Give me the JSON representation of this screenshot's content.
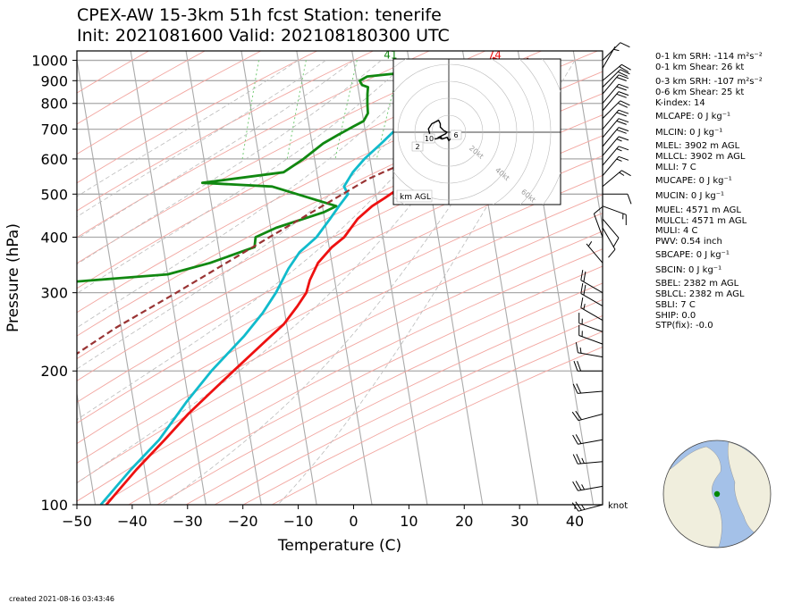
{
  "title": {
    "line1": "CPEX-AW 15-3km  51h fcst  Station: tenerife",
    "line2": "Init: 2021081600  Valid: 202108180300 UTC"
  },
  "created": "created 2021-08-16 03:43:46",
  "colors": {
    "temperature": "#ee1111",
    "dewpoint": "#118811",
    "wetbulb": "#11bbcc",
    "parcel": "#993333",
    "isotherm": "#aaaaaa",
    "dry_adiabat": "#f2a6a0",
    "moist_adiabat": "#bbbbbb",
    "mixing_ratio": "#77cc77"
  },
  "chart_data": {
    "type": "line",
    "subtype": "skew-T log-p",
    "xlabel": "Temperature (C)",
    "ylabel": "Pressure (hPa)",
    "xlim": [
      -50,
      45
    ],
    "ylim": [
      1050,
      100
    ],
    "y_scale": "log",
    "x_ticks": [
      "−50",
      "−40",
      "−30",
      "−20",
      "−10",
      "0",
      "10",
      "20",
      "30",
      "40"
    ],
    "y_ticks": [
      "100",
      "200",
      "300",
      "400",
      "500",
      "600",
      "700",
      "800",
      "900",
      "1000"
    ],
    "grid": true,
    "series": [
      {
        "key": "temperature",
        "points": [
          [
            1013,
            25.2
          ],
          [
            990,
            27
          ],
          [
            950,
            30.5
          ],
          [
            930,
            31.5
          ],
          [
            900,
            31
          ],
          [
            870,
            30
          ],
          [
            840,
            28
          ],
          [
            800,
            25.5
          ],
          [
            760,
            21.5
          ],
          [
            720,
            18.5
          ],
          [
            690,
            16
          ],
          [
            650,
            12.5
          ],
          [
            600,
            8.5
          ],
          [
            560,
            5.5
          ],
          [
            540,
            4.5
          ],
          [
            510,
            3.8
          ],
          [
            490,
            1.5
          ],
          [
            470,
            -1
          ],
          [
            440,
            -4
          ],
          [
            400,
            -7
          ],
          [
            380,
            -9.5
          ],
          [
            350,
            -12.5
          ],
          [
            320,
            -14.5
          ],
          [
            300,
            -15.5
          ],
          [
            280,
            -17.5
          ],
          [
            255,
            -20.5
          ],
          [
            230,
            -25
          ],
          [
            200,
            -31
          ],
          [
            180,
            -35.5
          ],
          [
            160,
            -40.5
          ],
          [
            140,
            -45.5
          ],
          [
            120,
            -51.5
          ],
          [
            100,
            -58
          ]
        ]
      },
      {
        "key": "dewpoint",
        "points": [
          [
            935,
            7.5
          ],
          [
            920,
            2
          ],
          [
            900,
            0.5
          ],
          [
            880,
            0.8
          ],
          [
            870,
            1.8
          ],
          [
            840,
            1.5
          ],
          [
            800,
            1.2
          ],
          [
            760,
            1
          ],
          [
            730,
            0
          ],
          [
            710,
            -2
          ],
          [
            680,
            -5
          ],
          [
            650,
            -8
          ],
          [
            600,
            -12
          ],
          [
            560,
            -16
          ],
          [
            530,
            -31
          ],
          [
            520,
            -18.5
          ],
          [
            470,
            -7.5
          ],
          [
            455,
            -10
          ],
          [
            420,
            -19
          ],
          [
            400,
            -23
          ],
          [
            380,
            -23.5
          ],
          [
            350,
            -32
          ],
          [
            330,
            -40
          ],
          [
            310,
            -68
          ],
          [
            258,
            -68
          ],
          [
            240,
            -62
          ],
          [
            230,
            -60
          ],
          [
            200,
            -66
          ],
          [
            170,
            -75
          ],
          [
            150,
            -77
          ],
          [
            120,
            -80
          ],
          [
            100,
            -84
          ]
        ]
      },
      {
        "key": "wetbulb",
        "points": [
          [
            940,
            15
          ],
          [
            900,
            14
          ],
          [
            870,
            15
          ],
          [
            840,
            14
          ],
          [
            800,
            13
          ],
          [
            760,
            10.5
          ],
          [
            720,
            8
          ],
          [
            690,
            5
          ],
          [
            650,
            2.5
          ],
          [
            600,
            -1
          ],
          [
            560,
            -3.5
          ],
          [
            520,
            -5.5
          ],
          [
            500,
            -5
          ],
          [
            470,
            -7
          ],
          [
            440,
            -9
          ],
          [
            400,
            -12
          ],
          [
            370,
            -15.5
          ],
          [
            340,
            -18
          ],
          [
            300,
            -21
          ],
          [
            270,
            -24
          ],
          [
            240,
            -28
          ],
          [
            200,
            -35
          ],
          [
            170,
            -40.5
          ],
          [
            140,
            -46.5
          ],
          [
            120,
            -52.5
          ],
          [
            100,
            -59
          ]
        ]
      },
      {
        "key": "parcel",
        "dashed": true,
        "points": [
          [
            1013,
            31.5
          ],
          [
            900,
            31.5
          ],
          [
            800,
            25
          ],
          [
            700,
            17
          ],
          [
            600,
            8
          ],
          [
            560,
            2
          ],
          [
            540,
            -1
          ],
          [
            500,
            -6
          ],
          [
            400,
            -20.5
          ],
          [
            300,
            -39
          ],
          [
            250,
            -51
          ],
          [
            200,
            -64
          ],
          [
            150,
            -80
          ],
          [
            120,
            -92
          ],
          [
            100,
            -101
          ]
        ]
      }
    ],
    "annotations": [
      {
        "text": "41",
        "x": 6.7,
        "p": 1000,
        "colorKey": "dewpoint"
      },
      {
        "text": "74",
        "x": 25.5,
        "p": 1000,
        "colorKey": "temperature"
      }
    ],
    "wind_units_label": "knot",
    "wind_barbs": [
      {
        "p": 1000,
        "dir": 45,
        "spd": 10
      },
      {
        "p": 960,
        "dir": 30,
        "spd": 5
      },
      {
        "p": 900,
        "dir": 50,
        "spd": 20
      },
      {
        "p": 870,
        "dir": 45,
        "spd": 20
      },
      {
        "p": 840,
        "dir": 40,
        "spd": 20
      },
      {
        "p": 800,
        "dir": 40,
        "spd": 20
      },
      {
        "p": 770,
        "dir": 40,
        "spd": 20
      },
      {
        "p": 740,
        "dir": 45,
        "spd": 20
      },
      {
        "p": 700,
        "dir": 40,
        "spd": 20
      },
      {
        "p": 670,
        "dir": 40,
        "spd": 20
      },
      {
        "p": 640,
        "dir": 40,
        "spd": 20
      },
      {
        "p": 610,
        "dir": 40,
        "spd": 15
      },
      {
        "p": 580,
        "dir": 40,
        "spd": 15
      },
      {
        "p": 550,
        "dir": 40,
        "spd": 15
      },
      {
        "p": 520,
        "dir": 50,
        "spd": 15
      },
      {
        "p": 500,
        "dir": 90,
        "spd": 10
      },
      {
        "p": 470,
        "dir": 110,
        "spd": 15
      },
      {
        "p": 440,
        "dir": 140,
        "spd": 10
      },
      {
        "p": 420,
        "dir": 150,
        "spd": 10
      },
      {
        "p": 400,
        "dir": 340,
        "spd": 10
      },
      {
        "p": 350,
        "dir": 320,
        "spd": 5
      },
      {
        "p": 300,
        "dir": 300,
        "spd": 20
      },
      {
        "p": 280,
        "dir": 300,
        "spd": 20
      },
      {
        "p": 260,
        "dir": 300,
        "spd": 15
      },
      {
        "p": 245,
        "dir": 290,
        "spd": 15
      },
      {
        "p": 230,
        "dir": 290,
        "spd": 15
      },
      {
        "p": 215,
        "dir": 280,
        "spd": 15
      },
      {
        "p": 200,
        "dir": 270,
        "spd": 20
      },
      {
        "p": 180,
        "dir": 265,
        "spd": 20
      },
      {
        "p": 160,
        "dir": 255,
        "spd": 20
      },
      {
        "p": 140,
        "dir": 260,
        "spd": 20
      },
      {
        "p": 125,
        "dir": 265,
        "spd": 25
      },
      {
        "p": 110,
        "dir": 260,
        "spd": 25
      },
      {
        "p": 100,
        "dir": 255,
        "spd": 25
      }
    ],
    "hodograph": {
      "ring_labels": [
        "20kt",
        "40kt",
        "60kt",
        "80kt"
      ],
      "height_labels": [
        "10",
        "2",
        "6"
      ],
      "footer": "km AGL",
      "points": [
        [
          -4,
          3
        ],
        [
          -8,
          4
        ],
        [
          -11,
          2
        ],
        [
          -12,
          -2
        ],
        [
          -10,
          -5
        ],
        [
          -8,
          -6
        ],
        [
          -6,
          -7
        ],
        [
          -5,
          -5
        ],
        [
          -5,
          -3
        ],
        [
          -3,
          -1
        ],
        [
          -1,
          0
        ],
        [
          -2,
          1
        ],
        [
          -4,
          2
        ],
        [
          -6,
          3
        ],
        [
          -4,
          4
        ],
        [
          -1,
          3
        ],
        [
          0,
          5
        ],
        [
          1,
          4
        ],
        [
          2,
          2
        ],
        [
          4,
          0
        ],
        [
          3,
          -1
        ]
      ]
    }
  },
  "indices": [
    {
      "text": "0-1 km SRH: -114 m²s⁻²"
    },
    {
      "text": "0-1 km Shear: 26 kt"
    },
    {
      "text": "0-3 km SRH: -107 m²s⁻²"
    },
    {
      "text": "0-6 km Shear: 25 kt"
    },
    {
      "text": "K-index: 14"
    },
    {
      "text": "MLCAPE: 0 J kg⁻¹"
    },
    {
      "text": "MLCIN: 0 J kg⁻¹"
    },
    {
      "text": "MLEL: 3902 m AGL"
    },
    {
      "text": "MLLCL: 3902 m AGL"
    },
    {
      "text": "MLLI: 7 C"
    },
    {
      "text": "MUCAPE: 0 J kg⁻¹"
    },
    {
      "text": "MUCIN: 0 J kg⁻¹"
    },
    {
      "text": "MUEL: 4571 m AGL"
    },
    {
      "text": "MULCL: 4571 m AGL"
    },
    {
      "text": "MULI: 4 C"
    },
    {
      "text": "PWV: 0.54 inch"
    },
    {
      "text": "SBCAPE: 0 J kg⁻¹"
    },
    {
      "text": "SBCIN: 0 J kg⁻¹"
    },
    {
      "text": "SBEL: 2382 m AGL"
    },
    {
      "text": "SBLCL: 2382 m AGL"
    },
    {
      "text": "SBLI: 7 C"
    },
    {
      "text": "SHIP: 0.0"
    },
    {
      "text": "STP(fix): -0.0"
    }
  ],
  "globe": {
    "ocean_color": "#a4c1e8",
    "land_color": "#f0eedd",
    "station_color": "#008800"
  }
}
